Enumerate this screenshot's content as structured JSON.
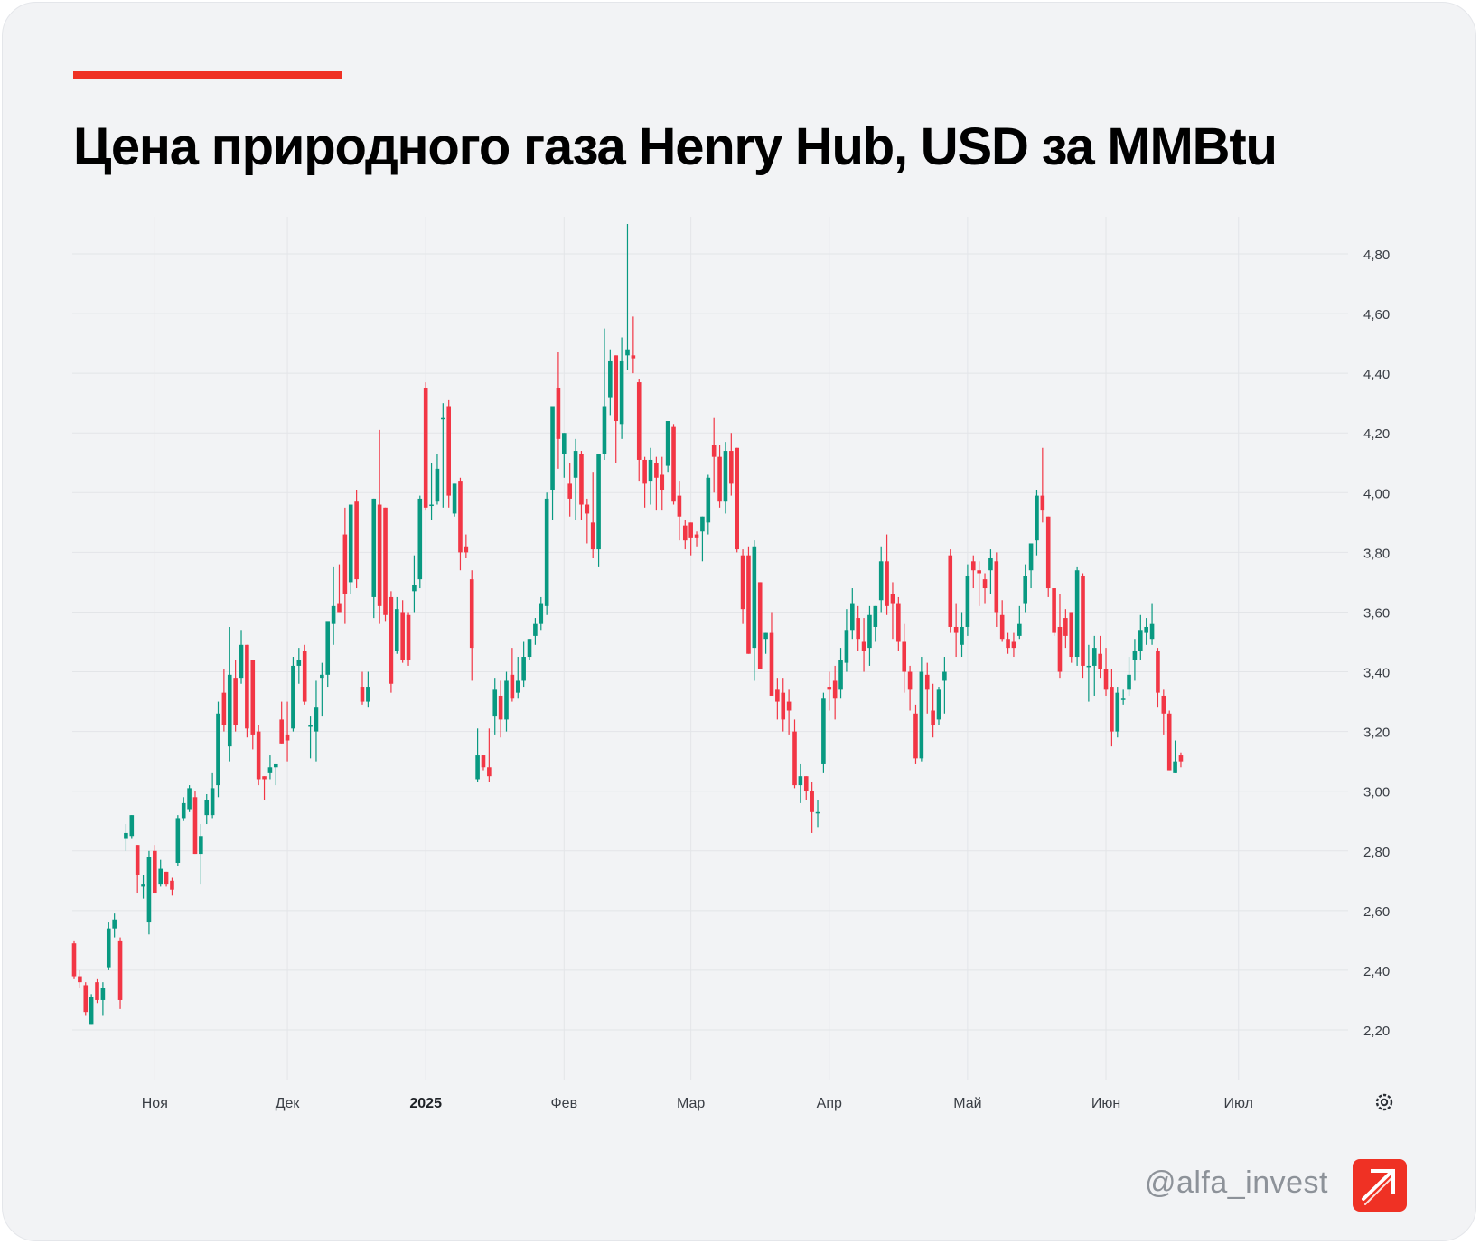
{
  "title": "Цена природного газа Henry Hub, USD за MMBtu",
  "footer": {
    "handle": "@alfa_invest",
    "logo_icon": "alfa-arrow-logo-icon"
  },
  "colors": {
    "accent": "#EF3124",
    "up": "#089981",
    "down": "#F23645",
    "grid": "#E3E5E8"
  },
  "chart_data": {
    "type": "candlestick",
    "title": "",
    "xlabel": "",
    "ylabel": "",
    "y_axis_position": "right",
    "ylim": [
      2.05,
      4.92
    ],
    "yticks": [
      2.2,
      2.4,
      2.6,
      2.8,
      3.0,
      3.2,
      3.4,
      3.6,
      3.8,
      4.0,
      4.2,
      4.4,
      4.6,
      4.8
    ],
    "ytick_labels": [
      "2,20",
      "2,40",
      "2,60",
      "2,80",
      "3,00",
      "3,20",
      "3,40",
      "3,60",
      "3,80",
      "4,00",
      "4,20",
      "4,40",
      "4,60",
      "4,80"
    ],
    "x_ticks": [
      {
        "label": "Ноя",
        "index": 14,
        "bold": false
      },
      {
        "label": "Дек",
        "index": 37,
        "bold": false
      },
      {
        "label": "2025",
        "index": 61,
        "bold": true
      },
      {
        "label": "Фев",
        "index": 85,
        "bold": false
      },
      {
        "label": "Мар",
        "index": 107,
        "bold": false
      },
      {
        "label": "Апр",
        "index": 131,
        "bold": false
      },
      {
        "label": "Май",
        "index": 155,
        "bold": false
      },
      {
        "label": "Июн",
        "index": 179,
        "bold": false
      },
      {
        "label": "Июл",
        "index": 202,
        "bold": false
      }
    ],
    "grid": true,
    "settings_icon": "gear-icon",
    "candles": [
      [
        2.49,
        2.5,
        2.37,
        2.38
      ],
      [
        2.38,
        2.4,
        2.34,
        2.36
      ],
      [
        2.35,
        2.36,
        2.25,
        2.26
      ],
      [
        2.22,
        2.32,
        2.22,
        2.31
      ],
      [
        2.36,
        2.37,
        2.29,
        2.3
      ],
      [
        2.3,
        2.36,
        2.25,
        2.34
      ],
      [
        2.41,
        2.56,
        2.4,
        2.54
      ],
      [
        2.54,
        2.59,
        2.51,
        2.57
      ],
      [
        2.5,
        2.51,
        2.27,
        2.3
      ],
      [
        2.84,
        2.89,
        2.8,
        2.86
      ],
      [
        2.85,
        2.92,
        2.84,
        2.92
      ],
      [
        2.82,
        2.82,
        2.66,
        2.72
      ],
      [
        2.68,
        2.72,
        2.64,
        2.69
      ],
      [
        2.56,
        2.8,
        2.52,
        2.78
      ],
      [
        2.8,
        2.82,
        2.66,
        2.66
      ],
      [
        2.69,
        2.77,
        2.68,
        2.74
      ],
      [
        2.73,
        2.73,
        2.68,
        2.69
      ],
      [
        2.7,
        2.71,
        2.65,
        2.67
      ],
      [
        2.76,
        2.92,
        2.75,
        2.91
      ],
      [
        2.91,
        2.98,
        2.9,
        2.96
      ],
      [
        2.94,
        3.02,
        2.93,
        3.01
      ],
      [
        2.98,
        3.0,
        2.79,
        2.79
      ],
      [
        2.79,
        2.89,
        2.69,
        2.85
      ],
      [
        2.92,
        2.99,
        2.89,
        2.97
      ],
      [
        2.92,
        3.06,
        2.91,
        3.01
      ],
      [
        3.02,
        3.3,
        2.98,
        3.26
      ],
      [
        3.33,
        3.41,
        3.2,
        3.22
      ],
      [
        3.15,
        3.55,
        3.1,
        3.39
      ],
      [
        3.38,
        3.44,
        3.2,
        3.22
      ],
      [
        3.38,
        3.54,
        3.36,
        3.49
      ],
      [
        3.49,
        3.49,
        3.18,
        3.21
      ],
      [
        3.44,
        3.44,
        3.14,
        3.19
      ],
      [
        3.2,
        3.22,
        3.02,
        3.04
      ],
      [
        3.05,
        3.05,
        2.97,
        3.04
      ],
      [
        3.06,
        3.12,
        3.04,
        3.08
      ],
      [
        3.08,
        3.09,
        3.02,
        3.09
      ],
      [
        3.24,
        3.3,
        3.16,
        3.16
      ],
      [
        3.19,
        3.3,
        3.1,
        3.17
      ],
      [
        3.21,
        3.45,
        3.2,
        3.42
      ],
      [
        3.42,
        3.48,
        3.36,
        3.44
      ],
      [
        3.47,
        3.49,
        3.29,
        3.3
      ],
      [
        3.22,
        3.25,
        3.11,
        3.22
      ],
      [
        3.2,
        3.37,
        3.1,
        3.28
      ],
      [
        3.38,
        3.43,
        3.25,
        3.39
      ],
      [
        3.39,
        3.56,
        3.35,
        3.57
      ],
      [
        3.56,
        3.75,
        3.49,
        3.62
      ],
      [
        3.63,
        3.76,
        3.6,
        3.6
      ],
      [
        3.86,
        3.95,
        3.56,
        3.66
      ],
      [
        3.7,
        3.96,
        3.66,
        3.96
      ],
      [
        3.97,
        4.01,
        3.68,
        3.71
      ],
      [
        3.35,
        3.4,
        3.29,
        3.3
      ],
      [
        3.3,
        3.4,
        3.28,
        3.35
      ],
      [
        3.65,
        3.98,
        3.58,
        3.98
      ],
      [
        3.96,
        4.21,
        3.56,
        3.62
      ],
      [
        3.95,
        3.95,
        3.57,
        3.59
      ],
      [
        3.65,
        3.67,
        3.33,
        3.36
      ],
      [
        3.47,
        3.65,
        3.46,
        3.61
      ],
      [
        3.6,
        3.64,
        3.43,
        3.44
      ],
      [
        3.59,
        3.6,
        3.42,
        3.44
      ],
      [
        3.67,
        3.79,
        3.6,
        3.69
      ],
      [
        3.71,
        3.99,
        3.68,
        3.98
      ],
      [
        4.35,
        4.37,
        3.94,
        3.95
      ],
      [
        3.96,
        4.1,
        3.91,
        3.96
      ],
      [
        3.97,
        4.13,
        3.96,
        4.08
      ],
      [
        4.25,
        4.3,
        3.95,
        4.25
      ],
      [
        4.29,
        4.31,
        3.95,
        3.99
      ],
      [
        3.93,
        4.03,
        3.92,
        4.03
      ],
      [
        4.04,
        4.05,
        3.74,
        3.8
      ],
      [
        3.82,
        3.86,
        3.78,
        3.8
      ],
      [
        3.71,
        3.74,
        3.37,
        3.48
      ],
      [
        3.04,
        3.21,
        3.03,
        3.12
      ],
      [
        3.12,
        3.12,
        3.07,
        3.08
      ],
      [
        3.08,
        3.21,
        3.03,
        3.05
      ],
      [
        3.25,
        3.38,
        3.19,
        3.34
      ],
      [
        3.32,
        3.37,
        3.18,
        3.24
      ],
      [
        3.24,
        3.4,
        3.2,
        3.37
      ],
      [
        3.39,
        3.48,
        3.3,
        3.31
      ],
      [
        3.33,
        3.45,
        3.31,
        3.37
      ],
      [
        3.37,
        3.5,
        3.35,
        3.45
      ],
      [
        3.45,
        3.51,
        3.44,
        3.51
      ],
      [
        3.52,
        3.58,
        3.49,
        3.56
      ],
      [
        3.56,
        3.65,
        3.54,
        3.63
      ],
      [
        3.62,
        4.0,
        3.59,
        3.98
      ],
      [
        4.01,
        4.29,
        3.91,
        4.29
      ],
      [
        4.35,
        4.47,
        4.08,
        4.18
      ],
      [
        4.13,
        4.2,
        4.05,
        4.2
      ],
      [
        4.03,
        4.1,
        3.92,
        3.98
      ],
      [
        4.05,
        4.18,
        3.91,
        4.14
      ],
      [
        4.13,
        4.14,
        3.91,
        3.96
      ],
      [
        3.96,
        3.98,
        3.83,
        3.93
      ],
      [
        3.9,
        4.07,
        3.78,
        3.81
      ],
      [
        3.81,
        4.12,
        3.75,
        4.13
      ],
      [
        4.13,
        4.55,
        4.11,
        4.29
      ],
      [
        4.32,
        4.48,
        4.26,
        4.44
      ],
      [
        4.46,
        4.46,
        4.1,
        4.24
      ],
      [
        4.23,
        4.52,
        4.18,
        4.44
      ],
      [
        4.46,
        4.9,
        4.41,
        4.48
      ],
      [
        4.46,
        4.59,
        4.4,
        4.45
      ],
      [
        4.37,
        4.38,
        4.04,
        4.11
      ],
      [
        4.11,
        4.12,
        3.95,
        4.03
      ],
      [
        4.04,
        4.15,
        3.96,
        4.11
      ],
      [
        4.1,
        4.12,
        3.94,
        4.05
      ],
      [
        4.06,
        4.12,
        3.94,
        4.01
      ],
      [
        4.09,
        4.24,
        4.07,
        4.24
      ],
      [
        4.22,
        4.23,
        3.96,
        3.97
      ],
      [
        3.99,
        4.04,
        3.84,
        3.92
      ],
      [
        3.89,
        3.91,
        3.81,
        3.84
      ],
      [
        3.9,
        3.9,
        3.79,
        3.85
      ],
      [
        3.86,
        3.87,
        3.82,
        3.85
      ],
      [
        3.87,
        3.92,
        3.77,
        3.92
      ],
      [
        3.9,
        4.06,
        3.86,
        4.05
      ],
      [
        4.16,
        4.25,
        4.0,
        4.12
      ],
      [
        4.12,
        4.16,
        3.95,
        3.97
      ],
      [
        3.97,
        4.17,
        3.93,
        4.14
      ],
      [
        4.14,
        4.2,
        3.99,
        4.03
      ],
      [
        4.15,
        4.15,
        3.8,
        3.81
      ],
      [
        3.79,
        3.81,
        3.56,
        3.61
      ],
      [
        3.79,
        3.82,
        3.46,
        3.46
      ],
      [
        3.48,
        3.84,
        3.37,
        3.82
      ],
      [
        3.7,
        3.7,
        3.41,
        3.41
      ],
      [
        3.51,
        3.53,
        3.46,
        3.53
      ],
      [
        3.53,
        3.6,
        3.33,
        3.32
      ],
      [
        3.34,
        3.38,
        3.24,
        3.3
      ],
      [
        3.33,
        3.38,
        3.2,
        3.24
      ],
      [
        3.3,
        3.34,
        3.19,
        3.27
      ],
      [
        3.2,
        3.24,
        3.01,
        3.02
      ],
      [
        3.02,
        3.09,
        2.96,
        3.05
      ],
      [
        3.05,
        3.05,
        2.97,
        3.0
      ],
      [
        3.0,
        3.03,
        2.86,
        2.93
      ],
      [
        2.93,
        2.97,
        2.88,
        2.93
      ],
      [
        3.09,
        3.33,
        3.06,
        3.31
      ],
      [
        3.35,
        3.4,
        3.27,
        3.34
      ],
      [
        3.37,
        3.42,
        3.24,
        3.31
      ],
      [
        3.34,
        3.48,
        3.31,
        3.44
      ],
      [
        3.43,
        3.61,
        3.4,
        3.54
      ],
      [
        3.54,
        3.68,
        3.51,
        3.63
      ],
      [
        3.58,
        3.62,
        3.47,
        3.51
      ],
      [
        3.5,
        3.58,
        3.4,
        3.47
      ],
      [
        3.48,
        3.62,
        3.42,
        3.59
      ],
      [
        3.55,
        3.62,
        3.5,
        3.62
      ],
      [
        3.64,
        3.82,
        3.6,
        3.77
      ],
      [
        3.77,
        3.86,
        3.59,
        3.62
      ],
      [
        3.66,
        3.7,
        3.51,
        3.63
      ],
      [
        3.63,
        3.65,
        3.47,
        3.5
      ],
      [
        3.5,
        3.56,
        3.33,
        3.4
      ],
      [
        3.4,
        3.42,
        3.27,
        3.34
      ],
      [
        3.26,
        3.29,
        3.09,
        3.11
      ],
      [
        3.11,
        3.45,
        3.1,
        3.4
      ],
      [
        3.39,
        3.43,
        3.26,
        3.34
      ],
      [
        3.27,
        3.36,
        3.18,
        3.22
      ],
      [
        3.24,
        3.35,
        3.22,
        3.34
      ],
      [
        3.37,
        3.45,
        3.26,
        3.4
      ],
      [
        3.79,
        3.81,
        3.53,
        3.55
      ],
      [
        3.55,
        3.63,
        3.45,
        3.53
      ],
      [
        3.49,
        3.6,
        3.45,
        3.55
      ],
      [
        3.55,
        3.76,
        3.52,
        3.72
      ],
      [
        3.77,
        3.79,
        3.68,
        3.74
      ],
      [
        3.74,
        3.77,
        3.62,
        3.73
      ],
      [
        3.71,
        3.73,
        3.63,
        3.68
      ],
      [
        3.74,
        3.81,
        3.66,
        3.78
      ],
      [
        3.77,
        3.8,
        3.55,
        3.6
      ],
      [
        3.59,
        3.64,
        3.5,
        3.51
      ],
      [
        3.51,
        3.53,
        3.46,
        3.48
      ],
      [
        3.5,
        3.53,
        3.45,
        3.48
      ],
      [
        3.52,
        3.62,
        3.51,
        3.56
      ],
      [
        3.63,
        3.76,
        3.6,
        3.72
      ],
      [
        3.74,
        3.83,
        3.68,
        3.83
      ],
      [
        3.84,
        4.01,
        3.79,
        3.99
      ],
      [
        3.99,
        4.15,
        3.9,
        3.94
      ],
      [
        3.92,
        3.92,
        3.65,
        3.68
      ],
      [
        3.68,
        3.68,
        3.52,
        3.53
      ],
      [
        3.55,
        3.66,
        3.38,
        3.4
      ],
      [
        3.58,
        3.61,
        3.48,
        3.52
      ],
      [
        3.6,
        3.6,
        3.43,
        3.45
      ],
      [
        3.45,
        3.75,
        3.42,
        3.74
      ],
      [
        3.72,
        3.73,
        3.38,
        3.42
      ],
      [
        3.42,
        3.49,
        3.3,
        3.42
      ],
      [
        3.42,
        3.52,
        3.32,
        3.48
      ],
      [
        3.46,
        3.52,
        3.38,
        3.41
      ],
      [
        3.41,
        3.48,
        3.32,
        3.34
      ],
      [
        3.35,
        3.41,
        3.15,
        3.2
      ],
      [
        3.2,
        3.35,
        3.18,
        3.33
      ],
      [
        3.31,
        3.34,
        3.29,
        3.31
      ],
      [
        3.34,
        3.45,
        3.32,
        3.39
      ],
      [
        3.44,
        3.51,
        3.37,
        3.47
      ],
      [
        3.47,
        3.59,
        3.44,
        3.54
      ],
      [
        3.53,
        3.58,
        3.49,
        3.55
      ],
      [
        3.51,
        3.63,
        3.49,
        3.56
      ],
      [
        3.47,
        3.48,
        3.28,
        3.33
      ],
      [
        3.32,
        3.34,
        3.19,
        3.26
      ],
      [
        3.26,
        3.27,
        3.07,
        3.07
      ],
      [
        3.06,
        3.17,
        3.06,
        3.1
      ],
      [
        3.12,
        3.13,
        3.08,
        3.1
      ]
    ]
  }
}
